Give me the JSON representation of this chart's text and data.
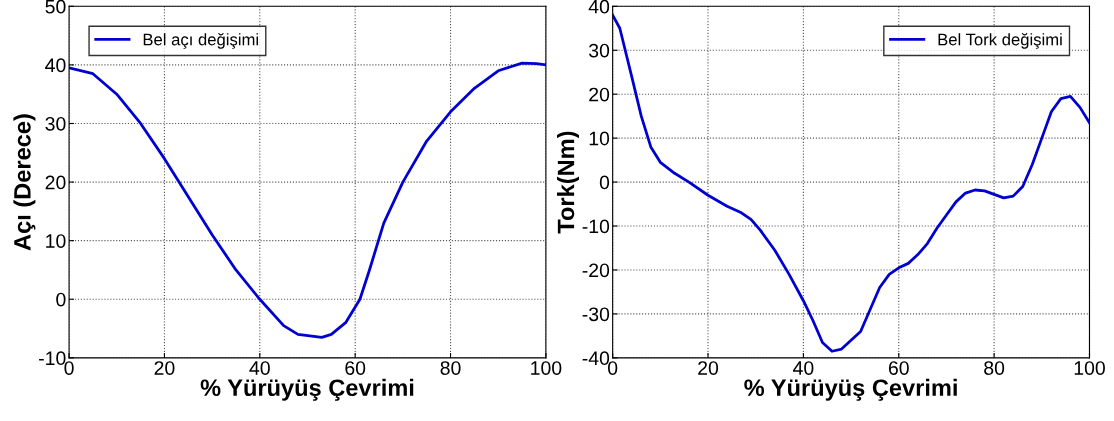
{
  "chart_data": [
    {
      "type": "line",
      "xlabel": "% Yürüyüş Çevrimi",
      "ylabel": "Açı (Derece)",
      "xlim": [
        0,
        100
      ],
      "ylim": [
        -10,
        50
      ],
      "xticks": [
        0,
        20,
        40,
        60,
        80,
        100
      ],
      "yticks": [
        -10,
        0,
        10,
        20,
        30,
        40,
        50
      ],
      "grid": true,
      "legend": "top left",
      "line_style": "solid",
      "series": [
        {
          "name": "Bel açı değişimi",
          "color": "#0000d0",
          "x": [
            0,
            5,
            10,
            15,
            20,
            25,
            30,
            35,
            40,
            45,
            48,
            53,
            55,
            58,
            61,
            63,
            66,
            70,
            75,
            80,
            85,
            90,
            95,
            98,
            100
          ],
          "values": [
            39.5,
            38.5,
            35,
            30,
            24,
            17.5,
            11,
            5,
            0,
            -4.5,
            -6,
            -6.5,
            -6,
            -4,
            0,
            5,
            13,
            20,
            27,
            32,
            36,
            39,
            40.3,
            40.2,
            40
          ]
        }
      ]
    },
    {
      "type": "line",
      "xlabel": "% Yürüyüş Çevrimi",
      "ylabel": "Tork(Nm)",
      "xlim": [
        0,
        100
      ],
      "ylim": [
        -40,
        40
      ],
      "xticks": [
        0,
        20,
        40,
        60,
        80,
        100
      ],
      "yticks": [
        -40,
        -30,
        -20,
        -10,
        0,
        10,
        20,
        30,
        40
      ],
      "grid": true,
      "legend": "top right",
      "line_style": "solid",
      "series": [
        {
          "name": "Bel Tork değişimi",
          "color": "#0000d0",
          "x": [
            0,
            1.5,
            4,
            6,
            8,
            10,
            13,
            16,
            20,
            24,
            27,
            29,
            31,
            34,
            37,
            40,
            42,
            44,
            46,
            48,
            50,
            52,
            54,
            56,
            58,
            60,
            62,
            64,
            66,
            68,
            70,
            72,
            74,
            76,
            78,
            80,
            82,
            84,
            86,
            88,
            90,
            92,
            94,
            96,
            98,
            100
          ],
          "values": [
            38,
            35,
            24,
            15,
            8,
            4.5,
            2,
            0,
            -3,
            -5.5,
            -7,
            -8.5,
            -11,
            -15.5,
            -21,
            -27,
            -31.5,
            -36.5,
            -38.5,
            -38,
            -36,
            -34,
            -29,
            -24,
            -21,
            -19.5,
            -18.5,
            -16.5,
            -14,
            -10.5,
            -7.5,
            -4.5,
            -2.5,
            -1.8,
            -2,
            -2.8,
            -3.6,
            -3.2,
            -1,
            4,
            10,
            16,
            19,
            19.5,
            17,
            13.5
          ]
        }
      ]
    }
  ]
}
